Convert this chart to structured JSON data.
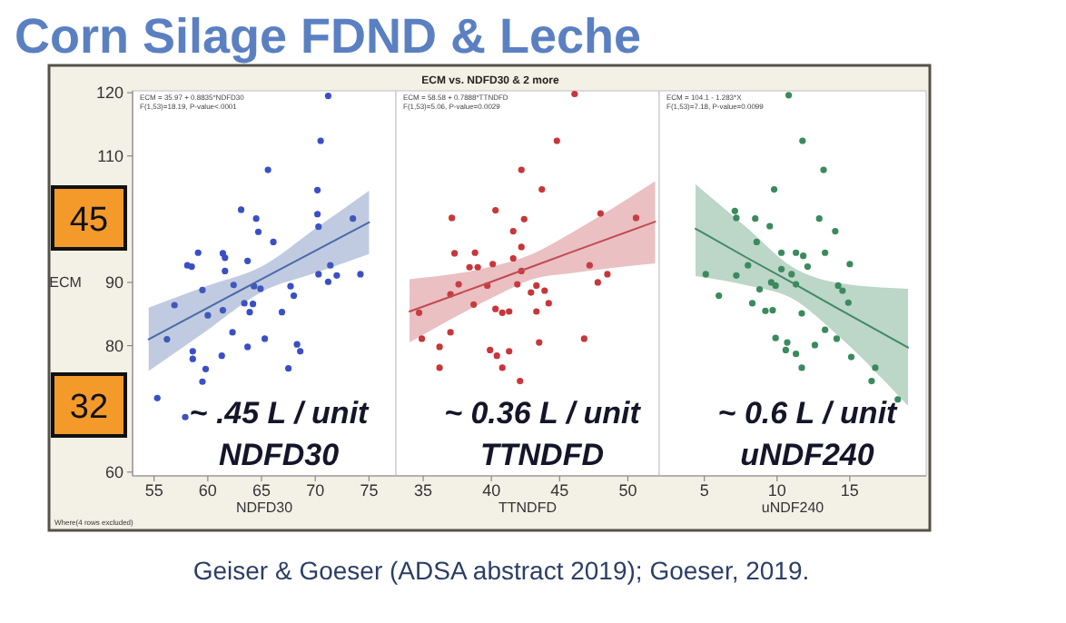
{
  "chart_data": [
    {
      "type": "scatter",
      "title": "Corn Silage FDND & Leche",
      "xlabel": "NDFD30",
      "ylabel": "ECM",
      "xlim": [
        53,
        77.5
      ],
      "xticks": [
        55,
        60,
        65,
        70,
        75
      ],
      "ylim": [
        59.4,
        120.3
      ],
      "yticks": [
        60,
        80,
        90,
        110,
        120
      ],
      "grid": false,
      "annotations": [
        "ECM = 35.97 + 0.8835*NDFD30",
        "F(1,53)=18.19, P-value<.0001",
        "~ .45 L / unit",
        "NDFD30",
        "45",
        "32",
        "Where(4 rows excluded)",
        "Geiser & Goeser (ADSA abstract 2019); Goeser, 2019."
      ],
      "series": [
        {
          "type": "scatter",
          "marker": "circle",
          "color": "#3b4fc4",
          "x": [
            71.2,
            70.5,
            65.6,
            70.2,
            63.1,
            64.5,
            70.2,
            70.3,
            73.5,
            64.7,
            66.1,
            59.1,
            61.4,
            61.6,
            63.7,
            58.1,
            58.5,
            61.6,
            71.4,
            72.0,
            70.3,
            74.2,
            71.2,
            59.5,
            62.4,
            64.3,
            64.9,
            67.7,
            68.0,
            63.4,
            64.2,
            63.9,
            66.9,
            56.9,
            60.0,
            61.4,
            62.3,
            65.3,
            63.7,
            68.3,
            68.6,
            56.2,
            58.6,
            58.6,
            61.3,
            59.8,
            67.5,
            59.5,
            55.3,
            57.9
          ],
          "values": [
            119.5,
            112.4,
            107.8,
            104.6,
            101.5,
            100.1,
            100.8,
            98.8,
            100.1,
            98.0,
            96.4,
            94.7,
            94.6,
            93.9,
            93.4,
            92.7,
            92.5,
            91.8,
            92.7,
            91.1,
            91.3,
            91.3,
            90.1,
            88.8,
            89.6,
            89.4,
            89.0,
            89.4,
            87.9,
            86.7,
            86.6,
            85.3,
            85.3,
            86.4,
            84.8,
            85.6,
            82.1,
            81.1,
            79.8,
            80.2,
            79.1,
            81.0,
            79.1,
            77.9,
            78.4,
            76.3,
            76.4,
            74.3,
            71.7,
            68.7
          ]
        },
        {
          "type": "line",
          "color": "#4a6aa8",
          "x": [
            54.5,
            60,
            65,
            70,
            75
          ],
          "values": [
            81,
            86,
            90.5,
            95,
            99.5
          ],
          "lower": [
            76,
            82.5,
            88.5,
            91.5,
            94.5
          ],
          "upper": [
            86,
            89.5,
            92.5,
            98.5,
            104.5
          ]
        }
      ]
    },
    {
      "type": "scatter",
      "title": "ECM vs. NDFD30 & 2 more",
      "xlabel": "TTNDFD",
      "xlim": [
        33,
        52.3
      ],
      "xticks": [
        35,
        40,
        45,
        50
      ],
      "ylim": [
        59.4,
        120.3
      ],
      "tick_labels": "x",
      "grid": false,
      "annotations": [
        "ECM = 58.58 + 0.7888*TTNDFD",
        "F(1,53)=5.06, P-value=0.0029",
        "~ 0.36 L / unit",
        "TTNDFD"
      ],
      "series": [
        {
          "type": "scatter",
          "marker": "circle",
          "color": "#c8363a",
          "x": [
            46.1,
            44.8,
            42.2,
            43.7,
            37.1,
            40.3,
            42.4,
            41.6,
            48.0,
            50.6,
            37.3,
            38.8,
            42.2,
            41.6,
            38.4,
            39.0,
            40.1,
            42.2,
            47.2,
            48.5,
            47.8,
            37.6,
            39.7,
            41.9,
            43.3,
            43.9,
            42.9,
            37.0,
            38.7,
            44.2,
            40.3,
            40.8,
            41.3,
            43.3,
            34.7,
            37.0,
            34.9,
            46.8,
            43.5,
            36.2,
            39.9,
            41.3,
            40.4,
            36.2,
            40.8,
            42.1
          ],
          "values": [
            119.8,
            112.4,
            107.8,
            104.7,
            100.2,
            101.4,
            100.0,
            98.1,
            100.9,
            100.2,
            94.6,
            94.7,
            95.6,
            93.8,
            92.4,
            92.4,
            92.9,
            91.8,
            92.7,
            91.3,
            90.0,
            89.7,
            89.5,
            89.7,
            89.5,
            88.7,
            88.4,
            88.1,
            86.5,
            86.7,
            85.8,
            85.2,
            85.4,
            85.4,
            85.2,
            82.1,
            81.1,
            81.1,
            80.5,
            79.8,
            79.3,
            79.1,
            78.4,
            76.5,
            76.5,
            74.4
          ]
        },
        {
          "type": "line",
          "color": "#c24a50",
          "x": [
            34,
            40,
            43,
            46,
            52
          ],
          "values": [
            85.4,
            90.1,
            92.5,
            94.9,
            99.6
          ],
          "lower": [
            80.5,
            87.5,
            90.5,
            91.5,
            93
          ],
          "upper": [
            90.5,
            92.5,
            94.5,
            98,
            106
          ]
        }
      ]
    },
    {
      "type": "scatter",
      "xlabel": "uNDF240",
      "xlim": [
        1.9,
        20.25
      ],
      "xticks": [
        5,
        10,
        15
      ],
      "ylim": [
        59.4,
        120.3
      ],
      "tick_labels": "x",
      "grid": false,
      "annotations": [
        "ECM = 104.1 - 1.283*X",
        "F(1,53)=7.18, P-value=0.0099",
        "~ 0.6 L / unit",
        "uNDF240"
      ],
      "series": [
        {
          "type": "scatter",
          "marker": "circle",
          "color": "#3a8a5c",
          "x": [
            10.8,
            11.75,
            13.2,
            9.8,
            7.1,
            7.2,
            8.5,
            9.5,
            12.9,
            14.0,
            8.6,
            10.3,
            11.3,
            11.8,
            12.1,
            13.3,
            15.0,
            8.0,
            10.3,
            11.0,
            5.1,
            7.2,
            9.6,
            9.9,
            11.3,
            14.2,
            14.5,
            14.9,
            6.0,
            8.8,
            8.3,
            9.2,
            9.7,
            11.7,
            9.9,
            10.7,
            10.6,
            11.3,
            12.6,
            13.3,
            14.1,
            15.1,
            11.7,
            16.75,
            16.5,
            18.3
          ],
          "values": [
            119.6,
            112.4,
            107.8,
            104.7,
            101.3,
            100.2,
            100.1,
            98.9,
            100.1,
            98.1,
            96.4,
            94.7,
            94.7,
            94.2,
            92.5,
            94.7,
            92.9,
            92.7,
            92.1,
            91.3,
            91.3,
            91.1,
            90.0,
            89.5,
            89.7,
            89.5,
            88.7,
            86.8,
            87.9,
            88.9,
            86.7,
            85.5,
            85.6,
            85.1,
            81.2,
            80.5,
            79.3,
            78.7,
            80.1,
            82.5,
            81.1,
            78.2,
            76.5,
            76.5,
            74.4,
            71.5
          ]
        },
        {
          "type": "line",
          "color": "#3f8a62",
          "x": [
            4.4,
            8,
            11,
            14,
            19
          ],
          "values": [
            98.5,
            93.8,
            90.0,
            86.1,
            79.7
          ],
          "lower": [
            91,
            89.5,
            87.5,
            82,
            70.5
          ],
          "upper": [
            105.5,
            98.5,
            92.5,
            90,
            89
          ]
        }
      ]
    }
  ]
}
